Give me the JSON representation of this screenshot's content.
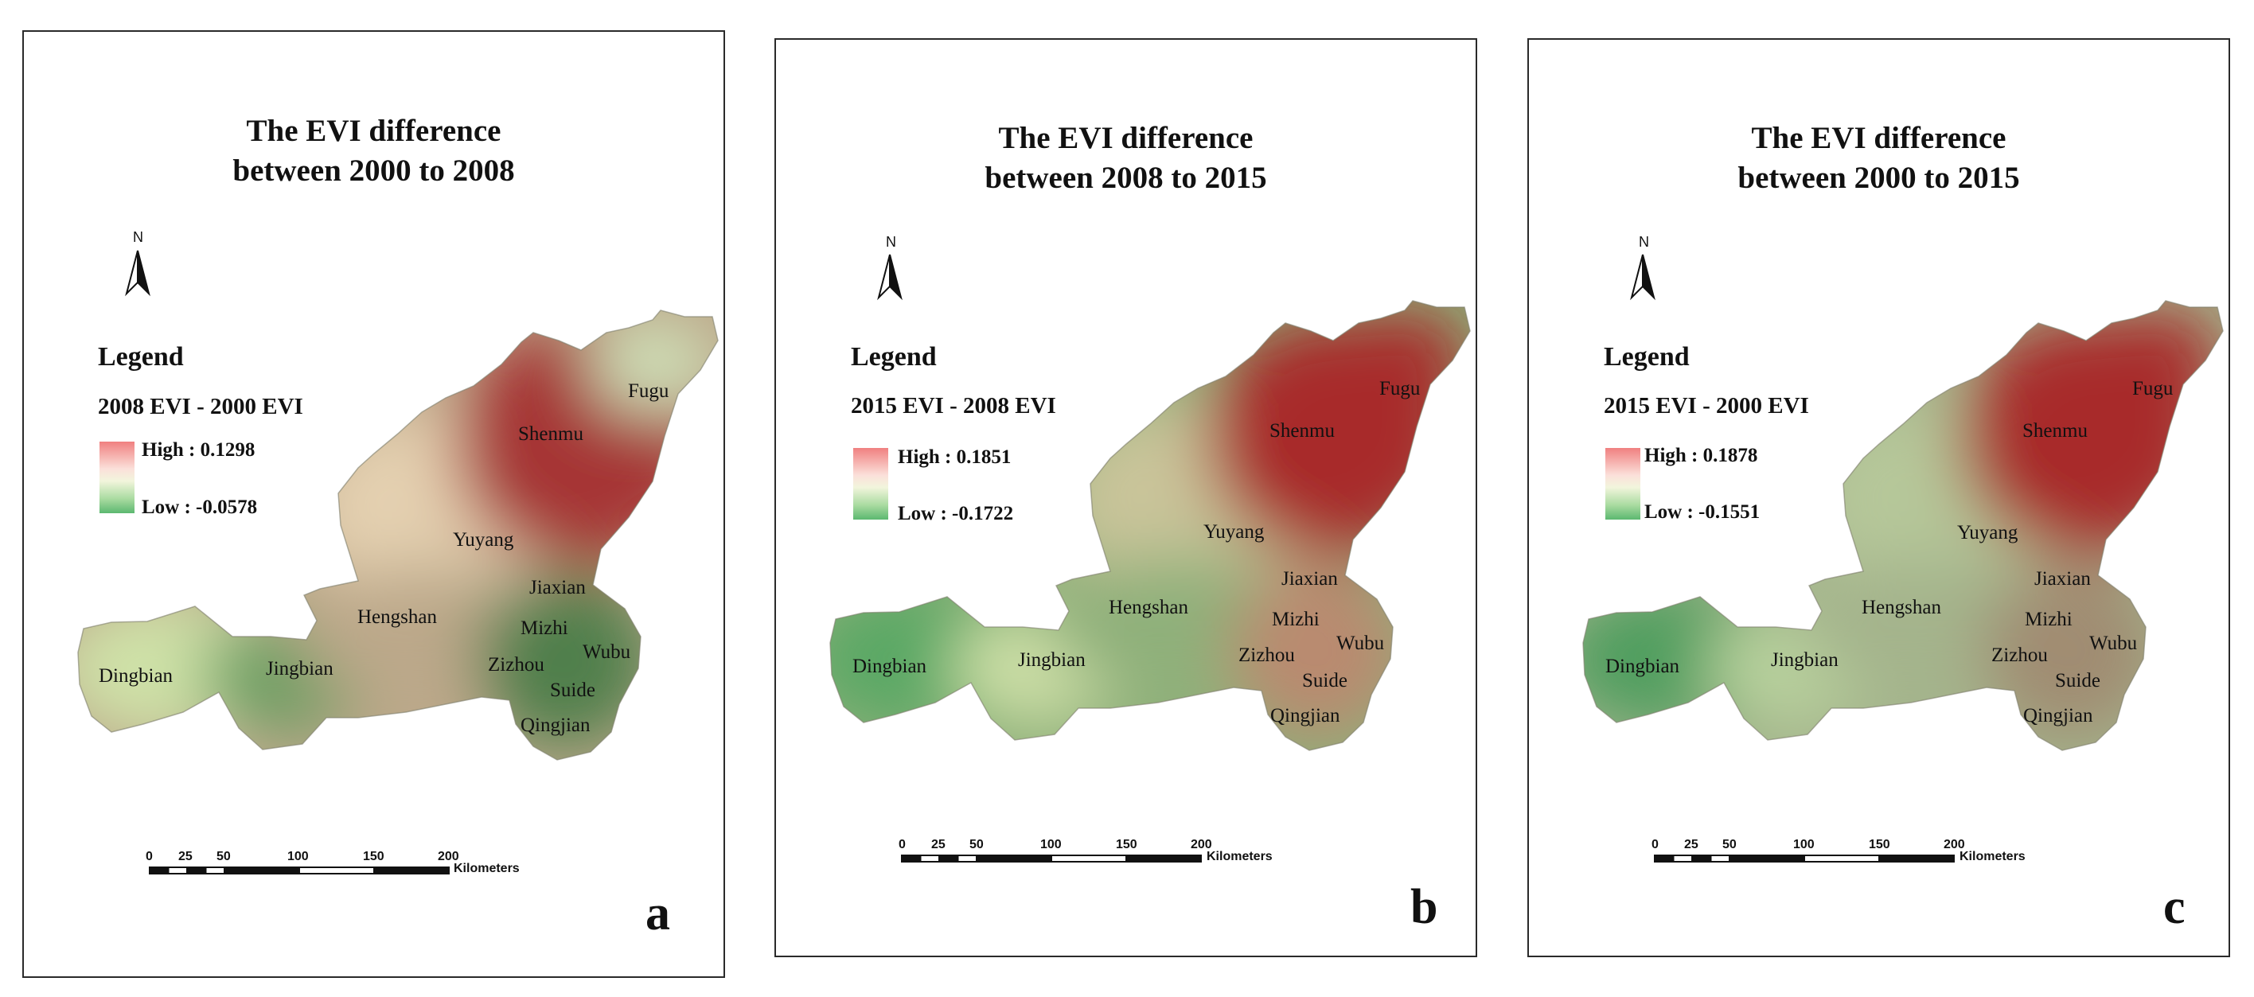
{
  "panels": [
    {
      "title_line1": "The EVI difference",
      "title_line2": "between 2000 to 2008",
      "north": "N",
      "legend_title": "Legend",
      "legend_subtitle": "2008 EVI - 2000 EVI",
      "high_label": "High : 0.1298",
      "low_label": "Low : -0.0578",
      "letter": "a",
      "palette": {
        "nw": "#e4d0b0",
        "ne": "#a63636",
        "fugu": "#cfe0b8",
        "west": "#cfe2a8",
        "jingbian": "#6a9e62",
        "mid": "#bca88a",
        "se": "#4f7f4c"
      }
    },
    {
      "title_line1": "The EVI difference",
      "title_line2": "between 2008 to 2015",
      "north": "N",
      "legend_title": "Legend",
      "legend_subtitle": "2015 EVI - 2008 EVI",
      "high_label": "High : 0.1851",
      "low_label": "Low : -0.1722",
      "letter": "b",
      "palette": {
        "nw": "#c9c49a",
        "ne": "#a82a2a",
        "fugu": "#a82a2a",
        "west": "#5aa865",
        "jingbian": "#cfe0a8",
        "mid": "#8fb07a",
        "se": "#b98a70"
      }
    },
    {
      "title_line1": "The EVI difference",
      "title_line2": "between 2000 to 2015",
      "north": "N",
      "legend_title": "Legend",
      "legend_subtitle": "2015 EVI - 2000 EVI",
      "high_label": "High : 0.1878",
      "low_label": "Low : -0.1551",
      "letter": "c",
      "palette": {
        "nw": "#b6c79a",
        "ne": "#a82a2a",
        "fugu": "#a82a2a",
        "west": "#4f9e5e",
        "jingbian": "#b9d29e",
        "mid": "#a4b48c",
        "se": "#a08c72"
      }
    }
  ],
  "places": {
    "fugu": "Fugu",
    "shenmu": "Shenmu",
    "yuyang": "Yuyang",
    "jiaxian": "Jiaxian",
    "hengshan": "Hengshan",
    "mizhi": "Mizhi",
    "wubu": "Wubu",
    "zizhou": "Zizhou",
    "suide": "Suide",
    "qingjian": "Qingjian",
    "dingbian": "Dingbian",
    "jingbian": "Jingbian"
  },
  "scale_bar": {
    "ticks": [
      "0",
      "25",
      "50",
      "100",
      "150",
      "200"
    ],
    "unit": "Kilometers"
  }
}
